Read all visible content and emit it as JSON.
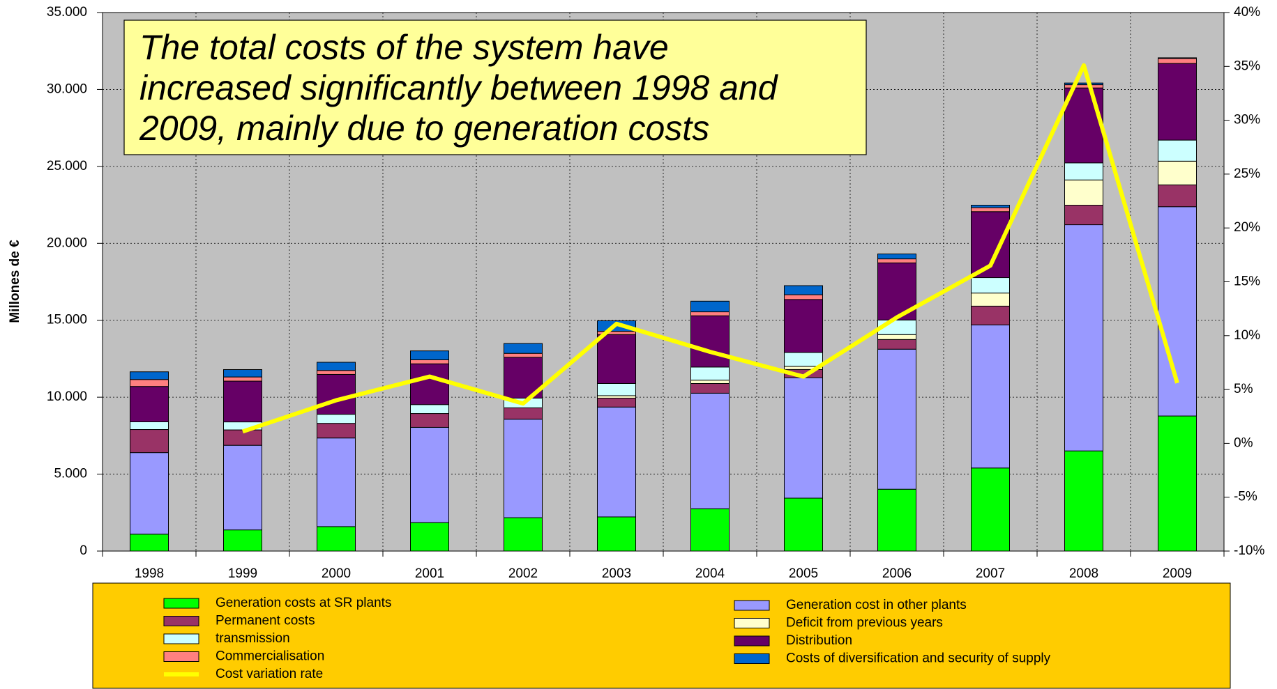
{
  "chart_data": {
    "type": "bar",
    "y_label": "Millones de €",
    "annotation": [
      "The total costs of the system have",
      "increased significantly between 1998 and",
      "2009, mainly due to generation costs"
    ],
    "categories": [
      "1998",
      "1999",
      "2000",
      "2001",
      "2002",
      "2003",
      "2004",
      "2005",
      "2006",
      "2007",
      "2008",
      "2009"
    ],
    "stacked": true,
    "series": [
      {
        "name": "Generation costs at SR plants",
        "color": "#00ff00",
        "values": [
          1100,
          1375,
          1590,
          1850,
          2170,
          2220,
          2750,
          3440,
          4020,
          5400,
          6510,
          8780
        ]
      },
      {
        "name": "Generation cost in other plants",
        "color": "#9999ff",
        "values": [
          5300,
          5500,
          5760,
          6190,
          6400,
          7140,
          7510,
          7830,
          9100,
          9300,
          14700,
          13600
        ]
      },
      {
        "name": "Permanent costs",
        "color": "#993366",
        "values": [
          1500,
          1000,
          950,
          900,
          740,
          580,
          630,
          530,
          630,
          1220,
          1270,
          1420
        ]
      },
      {
        "name": "Deficit from previous years",
        "color": "#ffffcc",
        "values": [
          0,
          0,
          0,
          0,
          0,
          160,
          220,
          210,
          320,
          850,
          1640,
          1540
        ]
      },
      {
        "name": "transmission",
        "color": "#ccffff",
        "values": [
          500,
          520,
          590,
          580,
          630,
          790,
          850,
          900,
          950,
          1000,
          1110,
          1370
        ]
      },
      {
        "name": "Distribution",
        "color": "#660066",
        "values": [
          2300,
          2650,
          2590,
          2650,
          2650,
          3180,
          3330,
          3440,
          3710,
          4290,
          4870,
          4980
        ]
      },
      {
        "name": "Commercialisation",
        "color": "#ff8080",
        "values": [
          450,
          270,
          260,
          260,
          260,
          210,
          260,
          310,
          260,
          260,
          210,
          320
        ]
      },
      {
        "name": "Costs of diversification and security of supply",
        "color": "#0066cc",
        "values": [
          500,
          480,
          530,
          580,
          640,
          690,
          690,
          590,
          320,
          160,
          110,
          50
        ]
      },
      {
        "name": "Cost variation rate",
        "color": "#ffff00",
        "type": "line",
        "axis": "y2",
        "values": [
          null,
          1.1,
          4.0,
          6.2,
          3.7,
          11.1,
          8.5,
          6.2,
          11.7,
          16.5,
          35.1,
          5.6
        ]
      }
    ],
    "ylim": [
      0,
      35000
    ],
    "yticks": [
      0,
      {
        "value": 5000,
        "label": "5.000"
      },
      {
        "value": 10000,
        "label": "10.000"
      },
      {
        "value": 15000,
        "label": "15.000"
      },
      {
        "value": 20000,
        "label": "20.000"
      },
      {
        "value": 25000,
        "label": "25.000"
      },
      {
        "value": 30000,
        "label": "30.000"
      },
      {
        "value": 35000,
        "label": "35.000"
      }
    ],
    "y2lim": [
      -10,
      40
    ],
    "y2ticks": [
      {
        "value": -10,
        "label": "-10%"
      },
      {
        "value": -5,
        "label": "-5%"
      },
      {
        "value": 0,
        "label": "0%"
      },
      {
        "value": 5,
        "label": "5%"
      },
      {
        "value": 10,
        "label": "10%"
      },
      {
        "value": 15,
        "label": "15%"
      },
      {
        "value": 20,
        "label": "20%"
      },
      {
        "value": 25,
        "label": "25%"
      },
      {
        "value": 30,
        "label": "30%"
      },
      {
        "value": 35,
        "label": "35%"
      },
      {
        "value": 40,
        "label": "40%"
      }
    ],
    "grid": true
  }
}
